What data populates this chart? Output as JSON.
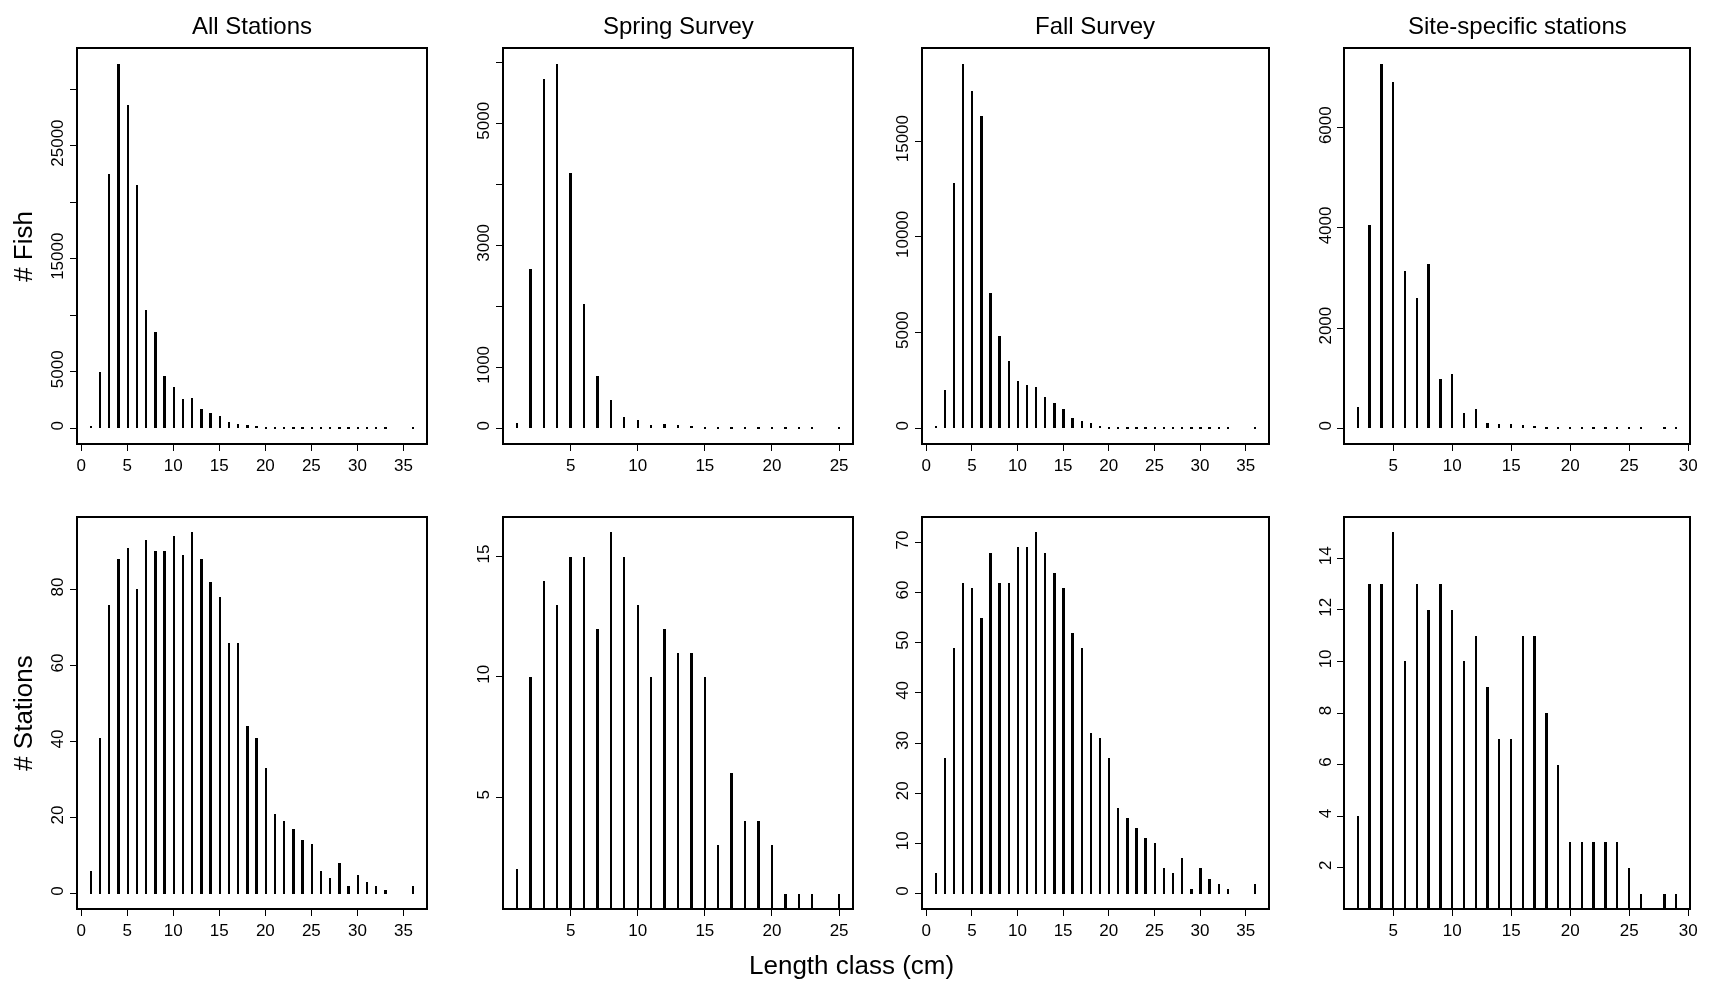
{
  "chart_data": [
    {
      "type": "bar",
      "title": "All Stations",
      "ylabel": "# Fish",
      "color": "#000000",
      "x": [
        1,
        2,
        3,
        4,
        5,
        6,
        7,
        8,
        9,
        10,
        11,
        12,
        13,
        14,
        15,
        16,
        17,
        18,
        19,
        20,
        21,
        22,
        23,
        24,
        25,
        26,
        27,
        28,
        29,
        30,
        31,
        32,
        33,
        36
      ],
      "values": [
        200,
        5000,
        22500,
        32200,
        28600,
        21500,
        10500,
        8500,
        4600,
        3700,
        2600,
        2700,
        1700,
        1400,
        1100,
        600,
        400,
        300,
        200,
        100,
        100,
        100,
        100,
        100,
        100,
        100,
        100,
        100,
        100,
        100,
        100,
        100,
        100,
        100
      ],
      "xlim": [
        -0.4,
        37.4
      ],
      "ylim": [
        -1290,
        33540
      ],
      "xticks": [
        0,
        5,
        10,
        15,
        20,
        25,
        30,
        35
      ],
      "yticks": [
        0,
        5000,
        {
          "value": 10000,
          "label": null
        },
        15000,
        {
          "value": 20000,
          "label": null
        },
        25000,
        {
          "value": 30000,
          "label": null
        }
      ]
    },
    {
      "type": "bar",
      "title": "Spring Survey",
      "color": "#000000",
      "x": [
        1,
        2,
        3,
        4,
        5,
        6,
        7,
        8,
        9,
        10,
        11,
        12,
        13,
        14,
        15,
        16,
        17,
        18,
        19,
        20,
        21,
        22,
        23,
        25
      ],
      "values": [
        90,
        2610,
        5730,
        5980,
        4190,
        2040,
        860,
        460,
        190,
        130,
        60,
        70,
        60,
        40,
        30,
        30,
        30,
        30,
        30,
        30,
        30,
        30,
        30,
        30
      ],
      "xlim": [
        0.04,
        25.96
      ],
      "ylim": [
        -239,
        6219
      ],
      "xticks": [
        5,
        10,
        15,
        20,
        25
      ],
      "yticks": [
        0,
        1000,
        {
          "value": 2000,
          "label": null
        },
        3000,
        {
          "value": 4000,
          "label": null
        },
        5000,
        {
          "value": 6000,
          "label": null
        }
      ]
    },
    {
      "type": "bar",
      "title": "Fall Survey",
      "color": "#000000",
      "x": [
        1,
        2,
        3,
        4,
        5,
        6,
        7,
        8,
        9,
        10,
        11,
        12,
        13,
        14,
        15,
        16,
        17,
        18,
        19,
        20,
        21,
        22,
        23,
        24,
        25,
        26,
        27,
        28,
        29,
        30,
        31,
        32,
        33,
        36
      ],
      "values": [
        140,
        2020,
        12800,
        19050,
        17600,
        16300,
        7050,
        4830,
        3530,
        2460,
        2250,
        2170,
        1650,
        1330,
        1010,
        550,
        400,
        260,
        140,
        60,
        60,
        60,
        60,
        60,
        60,
        60,
        60,
        60,
        60,
        60,
        60,
        60,
        60,
        30
      ],
      "xlim": [
        -0.4,
        37.4
      ],
      "ylim": [
        -762,
        19812
      ],
      "xticks": [
        0,
        5,
        10,
        15,
        20,
        25,
        30,
        35
      ],
      "yticks": [
        0,
        5000,
        10000,
        15000
      ]
    },
    {
      "type": "bar",
      "title": "Site-specific stations",
      "color": "#000000",
      "x": [
        2,
        3,
        4,
        5,
        6,
        7,
        8,
        9,
        10,
        11,
        12,
        13,
        14,
        15,
        16,
        17,
        18,
        19,
        20,
        21,
        22,
        23,
        24,
        25,
        26,
        28,
        29
      ],
      "values": [
        420,
        4050,
        7280,
        6920,
        3150,
        2610,
        3290,
        980,
        1090,
        300,
        380,
        110,
        80,
        90,
        70,
        50,
        30,
        30,
        30,
        30,
        30,
        30,
        30,
        30,
        30,
        20,
        20
      ],
      "xlim": [
        0.92,
        30.08
      ],
      "ylim": [
        -291,
        7571
      ],
      "xticks": [
        5,
        10,
        15,
        20,
        25,
        30
      ],
      "yticks": [
        0,
        2000,
        4000,
        6000
      ]
    },
    {
      "type": "bar",
      "ylabel": "# Stations",
      "color": "#000000",
      "x": [
        1,
        2,
        3,
        4,
        5,
        6,
        7,
        8,
        9,
        10,
        11,
        12,
        13,
        14,
        15,
        16,
        17,
        18,
        19,
        20,
        21,
        22,
        23,
        24,
        25,
        26,
        27,
        28,
        29,
        30,
        31,
        32,
        33,
        36
      ],
      "values": [
        6,
        41,
        76,
        88,
        91,
        80,
        93,
        90,
        90,
        94,
        89,
        95,
        88,
        82,
        78,
        66,
        66,
        44,
        41,
        33,
        21,
        19,
        17,
        14,
        13,
        6,
        4,
        8,
        2,
        5,
        3,
        2,
        1,
        2
      ],
      "xlim": [
        -0.4,
        37.4
      ],
      "ylim": [
        -3.8,
        98.8
      ],
      "xticks": [
        0,
        5,
        10,
        15,
        20,
        25,
        30,
        35
      ],
      "yticks": [
        0,
        20,
        40,
        60,
        80
      ]
    },
    {
      "type": "bar",
      "xlabel": "Length class (cm)",
      "color": "#000000",
      "x": [
        1,
        2,
        3,
        4,
        5,
        6,
        7,
        8,
        9,
        10,
        11,
        12,
        13,
        14,
        15,
        16,
        17,
        18,
        19,
        20,
        21,
        22,
        23,
        25
      ],
      "values": [
        2,
        10,
        14,
        13,
        15,
        15,
        12,
        16,
        15,
        13,
        10,
        12,
        11,
        11,
        10,
        3,
        6,
        4,
        4,
        3,
        1,
        1,
        1,
        1
      ],
      "xlim": [
        0.04,
        25.96
      ],
      "ylim": [
        0.4,
        16.6
      ],
      "xticks": [
        5,
        10,
        15,
        20,
        25
      ],
      "yticks": [
        5,
        10,
        15
      ]
    },
    {
      "type": "bar",
      "color": "#000000",
      "x": [
        1,
        2,
        3,
        4,
        5,
        6,
        7,
        8,
        9,
        10,
        11,
        12,
        13,
        14,
        15,
        16,
        17,
        18,
        19,
        20,
        21,
        22,
        23,
        24,
        25,
        26,
        27,
        28,
        29,
        30,
        31,
        32,
        33,
        36
      ],
      "values": [
        4,
        27,
        49,
        62,
        61,
        55,
        68,
        62,
        62,
        69,
        69,
        72,
        68,
        64,
        61,
        52,
        49,
        32,
        31,
        27,
        17,
        15,
        13,
        11,
        10,
        5,
        4,
        7,
        1,
        5,
        3,
        2,
        1,
        2
      ],
      "xlim": [
        -0.4,
        37.4
      ],
      "ylim": [
        -2.88,
        74.88
      ],
      "xticks": [
        0,
        5,
        10,
        15,
        20,
        25,
        30,
        35
      ],
      "yticks": [
        0,
        10,
        20,
        30,
        40,
        50,
        60,
        70
      ]
    },
    {
      "type": "bar",
      "color": "#000000",
      "x": [
        2,
        3,
        4,
        5,
        6,
        7,
        8,
        9,
        10,
        11,
        12,
        13,
        14,
        15,
        16,
        17,
        18,
        19,
        20,
        21,
        22,
        23,
        24,
        25,
        26,
        28,
        29
      ],
      "values": [
        4,
        13,
        13,
        15,
        10,
        13,
        12,
        13,
        12,
        10,
        11,
        9,
        7,
        7,
        11,
        11,
        8,
        6,
        3,
        3,
        3,
        3,
        3,
        2,
        1,
        1,
        1
      ],
      "xlim": [
        0.92,
        30.08
      ],
      "ylim": [
        0.44,
        15.56
      ],
      "xticks": [
        5,
        10,
        15,
        20,
        25,
        30
      ],
      "yticks": [
        2,
        4,
        6,
        8,
        10,
        12,
        14
      ]
    }
  ]
}
